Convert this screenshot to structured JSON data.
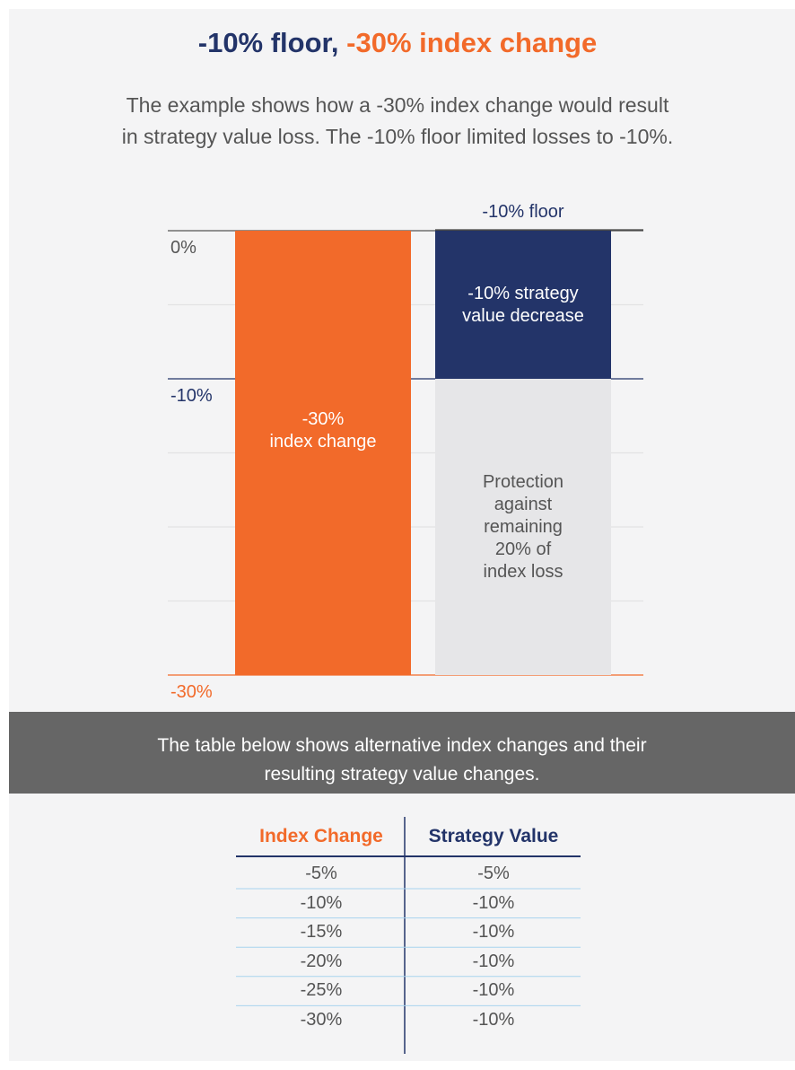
{
  "header": {
    "title": [
      "-10% floor,",
      "-30% index change"
    ],
    "intro": "The example shows how a -30% index change would result\nin strategy value loss. The -10% floor limited losses to -10%."
  },
  "chart_data": {
    "type": "bar",
    "stacked": true,
    "categories": [
      null,
      null
    ],
    "series": [
      {
        "name": "-30%\nindex change",
        "color": "#f26a2a",
        "values": [
          -30,
          null
        ]
      },
      {
        "name": "-10% strategy\nvalue decrease",
        "color": "#233469",
        "values": [
          null,
          -10
        ]
      },
      {
        "name": "Protection\nagainst\nremaining\n20% of\nindex loss",
        "color": "#e6e6e8",
        "values": [
          null,
          -20
        ]
      }
    ],
    "annotations": [
      "-10% floor"
    ],
    "ylim": [
      -30,
      0
    ],
    "yticks": [
      {
        "value": 0,
        "label": "0%",
        "color": "#555555"
      },
      {
        "value": -5,
        "label": null,
        "color": "#e2e2e4"
      },
      {
        "value": -10,
        "label": "-10%",
        "color": "#233469"
      },
      {
        "value": -15,
        "label": null,
        "color": "#e2e2e4"
      },
      {
        "value": -20,
        "label": null,
        "color": "#e2e2e4"
      },
      {
        "value": -25,
        "label": null,
        "color": "#e2e2e4"
      },
      {
        "value": -30,
        "label": "-30%",
        "color": "#f26a2a"
      }
    ],
    "grid": true
  },
  "banner": "The table below shows alternative index changes and their\nresulting strategy value changes.",
  "table": {
    "headers": [
      "Index Change",
      "Strategy Value"
    ],
    "rows": [
      [
        "-5%",
        "-5%"
      ],
      [
        "-10%",
        "-10%"
      ],
      [
        "-15%",
        "-10%"
      ],
      [
        "-20%",
        "-10%"
      ],
      [
        "-25%",
        "-10%"
      ],
      [
        "-30%",
        "-10%"
      ]
    ]
  }
}
